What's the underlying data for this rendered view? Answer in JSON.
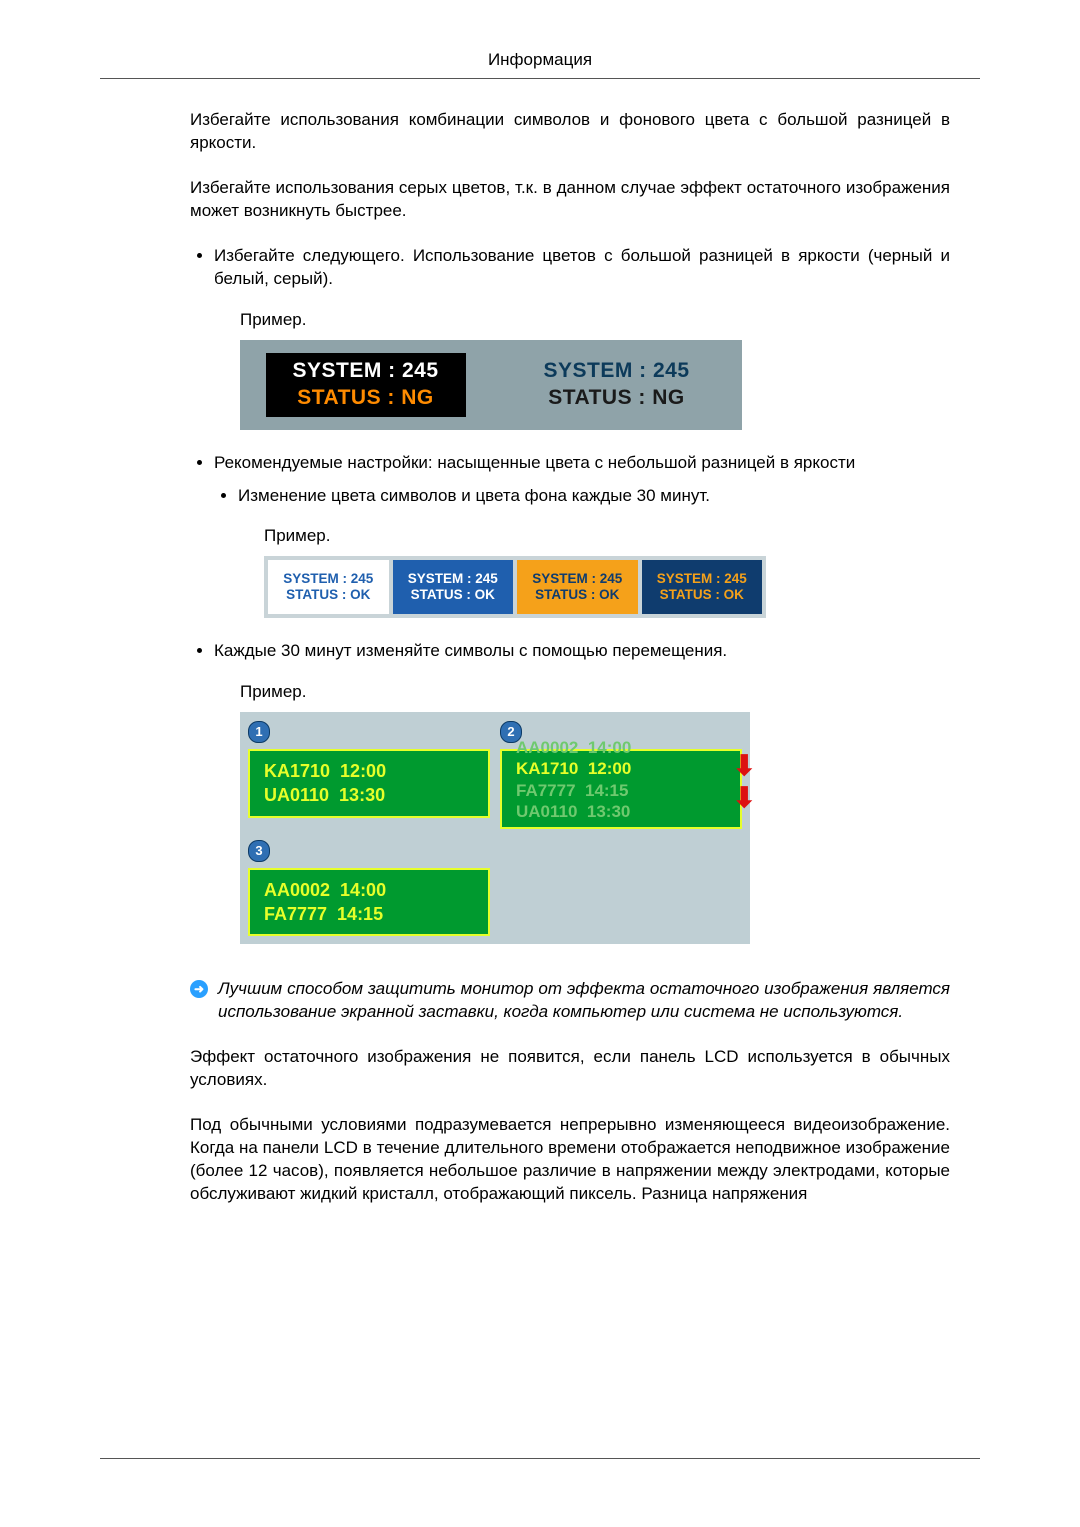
{
  "header": {
    "title": "Информация"
  },
  "paragraphs": {
    "p1": "Избегайте использования комбинации символов и фонового цвета с большой разницей в яркости.",
    "p2": "Избегайте использования серых цветов, т.к. в данном случае эффект остаточного изображения может возникнуть быстрее."
  },
  "bullets": {
    "b1": "Избегайте следующего. Использование цветов с большой разницей в яркости (черный и белый, серый).",
    "b1_example_label": "Пример.",
    "b2_intro": "Рекомендуемые настройки: насыщенные цвета с небольшой разницей в яркости",
    "b2_sub": "Изменение цвета символов и цвета фона каждые 30 минут.",
    "b2_example_label": "Пример.",
    "b3_intro": "Каждые 30 минут изменяйте символы с помощью перемещения.",
    "b3_example_label": "Пример."
  },
  "ex1": {
    "outer_bg": "#8fa3a9",
    "cells": [
      {
        "bg": "#000000",
        "line1_text": "SYSTEM : 245",
        "line1_color": "#ffffff",
        "line2_text": "STATUS : NG",
        "line2_color": "#ff8b00"
      },
      {
        "bg": "#8fa3a9",
        "line1_text": "SYSTEM : 245",
        "line1_color": "#0c3a5a",
        "line2_text": "STATUS : NG",
        "line2_color": "#1a1a1a"
      }
    ]
  },
  "ex2": {
    "outer_bg": "#c9d4d8",
    "cells": [
      {
        "bg": "#ffffff",
        "text_color": "#1f5fae",
        "line1": "SYSTEM : 245",
        "line2": "STATUS : OK"
      },
      {
        "bg": "#1f5fae",
        "text_color": "#ffffff",
        "line1": "SYSTEM : 245",
        "line2": "STATUS : OK"
      },
      {
        "bg": "#f5a11a",
        "text_color": "#0f3c6e",
        "line1": "SYSTEM : 245",
        "line2": "STATUS : OK"
      },
      {
        "bg": "#0f3c6e",
        "text_color": "#f5a11a",
        "line1": "SYSTEM : 245",
        "line2": "STATUS : OK"
      }
    ]
  },
  "ex3": {
    "outer_bg": "#bfcfd4",
    "panel_bg": "#009a2f",
    "panel_border": "#e6ff2a",
    "panel_text": "#e6ff2a",
    "badges": {
      "a": "1",
      "b": "2",
      "c": "3"
    },
    "panel1": {
      "l1": "KA1710  12:00",
      "l2": "UA0110  13:30"
    },
    "panel2_scroll": [
      {
        "text": "AA0002  14:00",
        "faded": true
      },
      {
        "text": "KA1710  12:00",
        "faded": false
      },
      {
        "text": "FA7777  14:15",
        "faded": true
      },
      {
        "text": "UA0110  13:30",
        "faded": true
      }
    ],
    "panel3": {
      "l1": "AA0002  14:00",
      "l2": "FA7777  14:15"
    }
  },
  "tip": {
    "icon_glyph": "➜",
    "text": "Лучшим способом защитить монитор от эффекта остаточного изображения является использование экранной заставки, когда компьютер или система не используются."
  },
  "tail": {
    "p1": "Эффект остаточного изображения не появится, если панель LCD используется в обычных условиях.",
    "p2": "Под обычными условиями подразумевается непрерывно изменяющееся видеоизображение. Когда на панели LCD в течение длительного времени отображается неподвижное изображение (более 12 часов), появляется небольшое различие в напряжении между электродами, которые обслуживают жидкий кристалл, отображающий пиксель. Разница напряжения"
  }
}
